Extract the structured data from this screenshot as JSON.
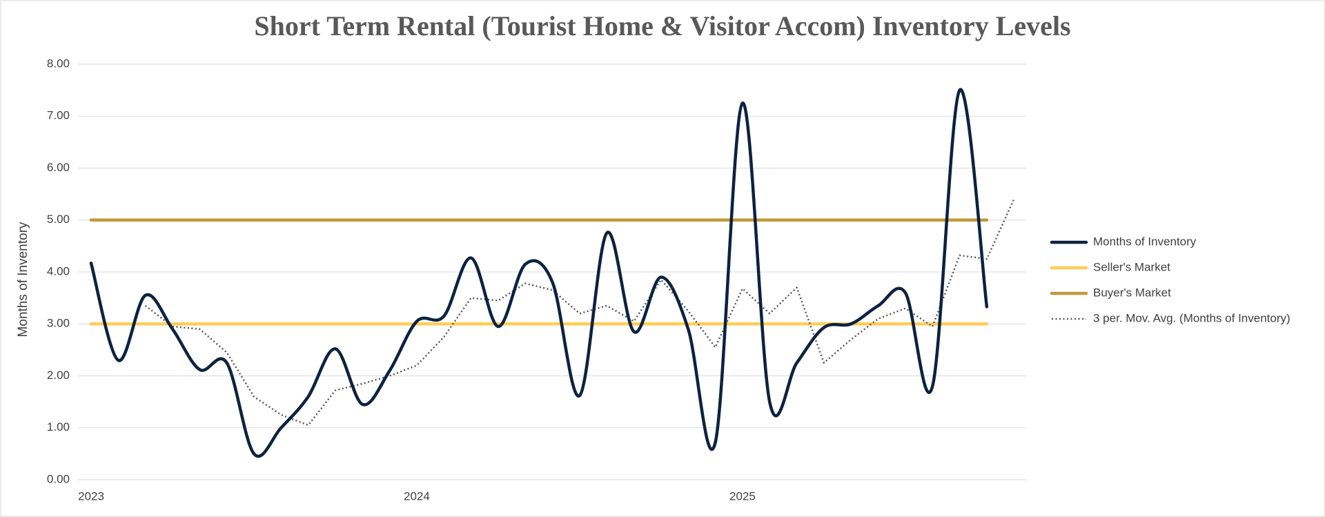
{
  "chart_data": {
    "type": "line",
    "title": "Short Term Rental (Tourist Home & Visitor Accom) Inventory Levels",
    "y_label": "Months of Inventory",
    "categories": [
      "2023",
      null,
      null,
      null,
      null,
      null,
      null,
      null,
      null,
      null,
      null,
      null,
      "2024",
      null,
      null,
      null,
      null,
      null,
      null,
      null,
      null,
      null,
      null,
      null,
      "2025",
      null,
      null,
      null,
      null,
      null,
      null,
      null,
      null,
      null,
      null
    ],
    "ylim": [
      0,
      8
    ],
    "yticks": [
      {
        "value": 0,
        "label": "0.00"
      },
      {
        "value": 1,
        "label": "1.00"
      },
      {
        "value": 2,
        "label": "2.00"
      },
      {
        "value": 3,
        "label": "3.00"
      },
      {
        "value": 4,
        "label": "4.00"
      },
      {
        "value": 5,
        "label": "5.00"
      },
      {
        "value": 6,
        "label": "6.00"
      },
      {
        "value": 7,
        "label": "7.00"
      },
      {
        "value": 8,
        "label": "8.00"
      }
    ],
    "grid": true,
    "legend": "right",
    "series": [
      {
        "name": "Months of Inventory",
        "color": "#0d2240",
        "style": "smooth",
        "values": [
          4.17,
          2.3,
          3.55,
          2.9,
          2.12,
          2.25,
          0.5,
          1.0,
          1.6,
          2.52,
          1.45,
          2.1,
          3.05,
          3.15,
          4.27,
          2.95,
          4.15,
          3.8,
          1.62,
          4.75,
          2.85,
          3.9,
          2.9,
          0.72,
          7.25,
          1.5,
          2.25,
          2.93,
          3.0,
          3.35,
          3.6,
          1.8,
          7.5,
          3.33,
          null
        ]
      },
      {
        "name": "Seller's Market",
        "color": "#ffcc55",
        "style": "solid",
        "values": [
          3,
          3,
          3,
          3,
          3,
          3,
          3,
          3,
          3,
          3,
          3,
          3,
          3,
          3,
          3,
          3,
          3,
          3,
          3,
          3,
          3,
          3,
          3,
          3,
          3,
          3,
          3,
          3,
          3,
          3,
          3,
          3,
          3,
          3,
          null
        ]
      },
      {
        "name": "Buyer's Market",
        "color": "#c4973a",
        "style": "solid",
        "values": [
          5,
          5,
          5,
          5,
          5,
          5,
          5,
          5,
          5,
          5,
          5,
          5,
          5,
          5,
          5,
          5,
          5,
          5,
          5,
          5,
          5,
          5,
          5,
          5,
          5,
          5,
          5,
          5,
          5,
          5,
          5,
          5,
          5,
          5,
          null
        ]
      },
      {
        "name": "3 per. Mov. Avg. (Months of Inventory)",
        "color": "#555555",
        "style": "dotted",
        "values": [
          null,
          null,
          3.35,
          2.95,
          2.9,
          2.45,
          1.6,
          1.25,
          1.05,
          1.72,
          1.85,
          2.0,
          2.2,
          2.75,
          3.5,
          3.45,
          3.78,
          3.65,
          3.2,
          3.35,
          3.05,
          3.85,
          3.25,
          2.55,
          3.68,
          3.2,
          3.7,
          2.25,
          2.7,
          3.1,
          3.3,
          2.95,
          4.32,
          4.25,
          5.4
        ]
      }
    ]
  }
}
